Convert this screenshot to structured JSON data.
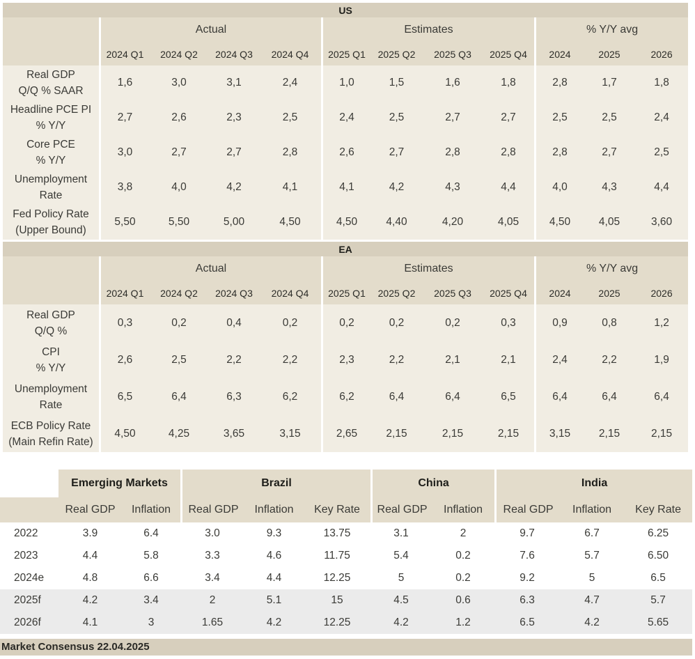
{
  "us": {
    "title": "US",
    "groups": [
      "Actual",
      "Estimates",
      "% Y/Y avg"
    ],
    "periods": [
      "2024 Q1",
      "2024 Q2",
      "2024 Q3",
      "2024 Q4",
      "2025 Q1",
      "2025 Q2",
      "2025 Q3",
      "2025 Q4",
      "2024",
      "2025",
      "2026"
    ],
    "rows": [
      {
        "label": [
          "Real GDP",
          "Q/Q % SAAR"
        ],
        "values": [
          "1,6",
          "3,0",
          "3,1",
          "2,4",
          "1,0",
          "1,5",
          "1,6",
          "1,8",
          "2,8",
          "1,7",
          "1,8"
        ]
      },
      {
        "label": [
          "Headline PCE PI",
          "% Y/Y"
        ],
        "values": [
          "2,7",
          "2,6",
          "2,3",
          "2,5",
          "2,4",
          "2,5",
          "2,7",
          "2,7",
          "2,5",
          "2,5",
          "2,4"
        ]
      },
      {
        "label": [
          "Core PCE",
          "% Y/Y"
        ],
        "values": [
          "3,0",
          "2,7",
          "2,7",
          "2,8",
          "2,6",
          "2,7",
          "2,8",
          "2,8",
          "2,8",
          "2,7",
          "2,5"
        ]
      },
      {
        "label": [
          "Unemployment",
          "Rate"
        ],
        "values": [
          "3,8",
          "4,0",
          "4,2",
          "4,1",
          "4,1",
          "4,2",
          "4,3",
          "4,4",
          "4,0",
          "4,3",
          "4,4"
        ]
      },
      {
        "label": [
          "Fed Policy Rate",
          "(Upper Bound)"
        ],
        "values": [
          "5,50",
          "5,50",
          "5,00",
          "4,50",
          "4,50",
          "4,40",
          "4,20",
          "4,05",
          "4,50",
          "4,05",
          "3,60"
        ]
      }
    ]
  },
  "ea": {
    "title": "EA",
    "groups": [
      "Actual",
      "Estimates",
      "% Y/Y avg"
    ],
    "periods": [
      "2024 Q1",
      "2024 Q2",
      "2024 Q3",
      "2024 Q4",
      "2025 Q1",
      "2025 Q2",
      "2025 Q3",
      "2025 Q4",
      "2024",
      "2025",
      "2026"
    ],
    "rows": [
      {
        "label": [
          "Real GDP",
          "Q/Q %"
        ],
        "values": [
          "0,3",
          "0,2",
          "0,4",
          "0,2",
          "0,2",
          "0,2",
          "0,2",
          "0,3",
          "0,9",
          "0,8",
          "1,2"
        ]
      },
      {
        "label": [
          "CPI",
          "% Y/Y"
        ],
        "values": [
          "2,6",
          "2,5",
          "2,2",
          "2,2",
          "2,3",
          "2,2",
          "2,1",
          "2,1",
          "2,4",
          "2,2",
          "1,9"
        ]
      },
      {
        "label": [
          "Unemployment",
          "Rate"
        ],
        "values": [
          "6,5",
          "6,4",
          "6,3",
          "6,2",
          "6,2",
          "6,4",
          "6,4",
          "6,5",
          "6,4",
          "6,4",
          "6,4"
        ]
      },
      {
        "label": [
          "ECB Policy Rate",
          "(Main Refin Rate)"
        ],
        "values": [
          "4,50",
          "4,25",
          "3,65",
          "3,15",
          "2,65",
          "2,15",
          "2,15",
          "2,15",
          "3,15",
          "2,15",
          "2,15"
        ]
      }
    ]
  },
  "em": {
    "regions": [
      "Emerging Markets",
      "Brazil",
      "China",
      "India"
    ],
    "columns": [
      "Real GDP",
      "Inflation",
      "Real GDP",
      "Inflation",
      "Key Rate",
      "Real GDP",
      "Inflation",
      "Real GDP",
      "Inflation",
      "Key Rate"
    ],
    "rows": [
      {
        "year": "2022",
        "values": [
          "3.9",
          "6.4",
          "3.0",
          "9.3",
          "13.75",
          "3.1",
          "2",
          "9.7",
          "6.7",
          "6.25"
        ]
      },
      {
        "year": "2023",
        "values": [
          "4.4",
          "5.8",
          "3.3",
          "4.6",
          "11.75",
          "5.4",
          "0.2",
          "7.6",
          "5.7",
          "6.50"
        ]
      },
      {
        "year": "2024e",
        "values": [
          "4.8",
          "6.6",
          "3.4",
          "4.4",
          "12.25",
          "5",
          "0.2",
          "9.2",
          "5",
          "6.5"
        ]
      },
      {
        "year": "2025f",
        "values": [
          "4.2",
          "3.4",
          "2",
          "5.1",
          "15",
          "4.5",
          "0.6",
          "6.3",
          "4.7",
          "5.7"
        ]
      },
      {
        "year": "2026f",
        "values": [
          "4.1",
          "3",
          "1.65",
          "4.2",
          "12.25",
          "4.2",
          "1.2",
          "6.5",
          "4.2",
          "5.65"
        ]
      }
    ]
  },
  "footer": "Market Consensus 22.04.2025",
  "colors": {
    "header": "#d7cfbd",
    "subheader": "#e3dccb",
    "body": "#f1ede3",
    "alt_row": "#ebebeb"
  }
}
